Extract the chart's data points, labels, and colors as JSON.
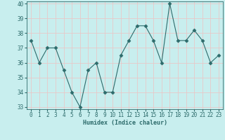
{
  "x": [
    0,
    1,
    2,
    3,
    4,
    5,
    6,
    7,
    8,
    9,
    10,
    11,
    12,
    13,
    14,
    15,
    16,
    17,
    18,
    19,
    20,
    21,
    22,
    23
  ],
  "y": [
    37.5,
    36.0,
    37.0,
    37.0,
    35.5,
    34.0,
    33.0,
    35.5,
    36.0,
    34.0,
    34.0,
    36.5,
    37.5,
    38.5,
    38.5,
    37.5,
    36.0,
    40.0,
    37.5,
    37.5,
    38.2,
    37.5,
    36.0,
    36.5
  ],
  "line_color": "#2d6b6b",
  "marker": "D",
  "marker_size": 2.5,
  "bg_color": "#c8eeee",
  "grid_color": "#e8c8c8",
  "tick_color": "#2d6b6b",
  "xlabel": "Humidex (Indice chaleur)",
  "ylim": [
    33,
    40
  ],
  "xlim_min": -0.5,
  "xlim_max": 23.5,
  "yticks": [
    33,
    34,
    35,
    36,
    37,
    38,
    39,
    40
  ],
  "xticks": [
    0,
    1,
    2,
    3,
    4,
    5,
    6,
    7,
    8,
    9,
    10,
    11,
    12,
    13,
    14,
    15,
    16,
    17,
    18,
    19,
    20,
    21,
    22,
    23
  ],
  "xlabel_fontsize": 6.0,
  "tick_fontsize": 5.5
}
